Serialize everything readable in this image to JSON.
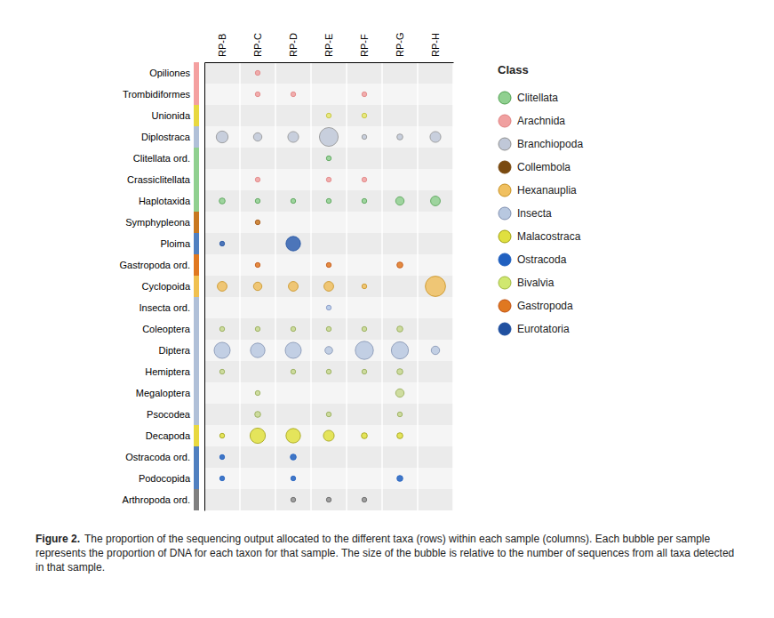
{
  "chart_data": {
    "type": "bubble",
    "categories": [
      "RP-B",
      "RP-C",
      "RP-D",
      "RP-E",
      "RP-F",
      "RP-G",
      "RP-H"
    ],
    "y_categories": [
      "Opiliones",
      "Trombidiformes",
      "Unionida",
      "Diplostraca",
      "Clitellata ord.",
      "Crassiclitellata",
      "Haplotaxida",
      "Symphypleona",
      "Ploima",
      "Gastropoda ord.",
      "Cyclopoida",
      "Insecta ord.",
      "Coleoptera",
      "Diptera",
      "Hemiptera",
      "Megaloptera",
      "Psocodea",
      "Decapoda",
      "Ostracoda ord.",
      "Podocopida",
      "Arthropoda ord."
    ],
    "sizes": [
      [
        0,
        2,
        0,
        0,
        0,
        0,
        0
      ],
      [
        0,
        2,
        2,
        0,
        2,
        0,
        0
      ],
      [
        0,
        0,
        0,
        2,
        2,
        0,
        0
      ],
      [
        12,
        6,
        10,
        30,
        2,
        3,
        10
      ],
      [
        0,
        0,
        0,
        2,
        0,
        0,
        0
      ],
      [
        0,
        2,
        0,
        2,
        2,
        0,
        0
      ],
      [
        3,
        2,
        2,
        2,
        2,
        6,
        8
      ],
      [
        0,
        2,
        0,
        0,
        0,
        0,
        0
      ],
      [
        2,
        0,
        18,
        0,
        0,
        0,
        0
      ],
      [
        0,
        2,
        0,
        2,
        0,
        3,
        0
      ],
      [
        8,
        6,
        8,
        8,
        2,
        0,
        35
      ],
      [
        0,
        0,
        0,
        2,
        0,
        0,
        0
      ],
      [
        2,
        2,
        2,
        2,
        2,
        3,
        0
      ],
      [
        22,
        18,
        22,
        5,
        28,
        25,
        6
      ],
      [
        2,
        0,
        2,
        2,
        2,
        3,
        0
      ],
      [
        0,
        2,
        0,
        0,
        0,
        6,
        0
      ],
      [
        0,
        3,
        0,
        2,
        0,
        2,
        0
      ],
      [
        2,
        20,
        18,
        10,
        3,
        3,
        0
      ],
      [
        2,
        0,
        3,
        0,
        0,
        0,
        0
      ],
      [
        2,
        0,
        2,
        0,
        0,
        3,
        0
      ],
      [
        0,
        0,
        2,
        2,
        2,
        0,
        0
      ]
    ],
    "row_colors": [
      "#f0a0a0",
      "#f0a0a0",
      "#e8e870",
      "#c0c8d8",
      "#90d090",
      "#f0a0a0",
      "#90d090",
      "#c87820",
      "#3060b0",
      "#e07820",
      "#f0c060",
      "#b0c8e8",
      "#c8d890",
      "#b8c8e0",
      "#c8d890",
      "#c8d890",
      "#c8d890",
      "#e0e040",
      "#2060c0",
      "#2060c0",
      "#909090"
    ],
    "row_edge_colors": [
      "#e08080",
      "#e08080",
      "#c0c030",
      "#909090",
      "#50a050",
      "#e08080",
      "#50a050",
      "#a05010",
      "#2050a0",
      "#c05010",
      "#c89020",
      "#8090c0",
      "#90a850",
      "#8090b0",
      "#90a850",
      "#90a850",
      "#90a850",
      "#a0a010",
      "#2060c0",
      "#2060c0",
      "#606060"
    ],
    "row_bar_colors": [
      "#f4a0a0",
      "#f4a0a0",
      "#e8d840",
      "#b0c0d8",
      "#90d090",
      "#90d090",
      "#90d090",
      "#c87820",
      "#5080c0",
      "#e07820",
      "#f0c050",
      "#b0c0d8",
      "#b0c0d8",
      "#b0c0d8",
      "#b0c0d8",
      "#b0c0d8",
      "#b0c0d8",
      "#e8d840",
      "#5080c0",
      "#5080c0",
      "#808080"
    ],
    "legend": "right",
    "legend_title": "Class",
    "legend_entries": [
      {
        "name": "Clitellata",
        "color": "#90d090",
        "edge_color": "#50a050"
      },
      {
        "name": "Arachnida",
        "color": "#f0a0a0",
        "edge_color": "#e08080"
      },
      {
        "name": "Branchiopoda",
        "color": "#c0c8d8",
        "edge_color": "#909090"
      },
      {
        "name": "Collembola",
        "color": "#7a4a10",
        "edge_color": "#7a4a10"
      },
      {
        "name": "Hexanauplia",
        "color": "#f0c060",
        "edge_color": "#c89020"
      },
      {
        "name": "Insecta",
        "color": "#b8c8e0",
        "edge_color": "#8090b0"
      },
      {
        "name": "Malacostraca",
        "color": "#e0e040",
        "edge_color": "#a0a010"
      },
      {
        "name": "Ostracoda",
        "color": "#2060c0",
        "edge_color": "#2060c0"
      },
      {
        "name": "Bivalvia",
        "color": "#d0e870",
        "edge_color": "#a0b840"
      },
      {
        "name": "Gastropoda",
        "color": "#e07820",
        "edge_color": "#c05010"
      },
      {
        "name": "Eurotatoria",
        "color": "#2050a0",
        "edge_color": "#2050a0"
      }
    ],
    "caption_bold": "Figure 2.",
    "caption": "The proportion of the sequencing output allocated to the different taxa (rows) within each sample (columns). Each bubble per sample represents the proportion of DNA for each taxon for that sample. The size of the bubble is relative to the number of sequences from all taxa detected in that sample."
  }
}
